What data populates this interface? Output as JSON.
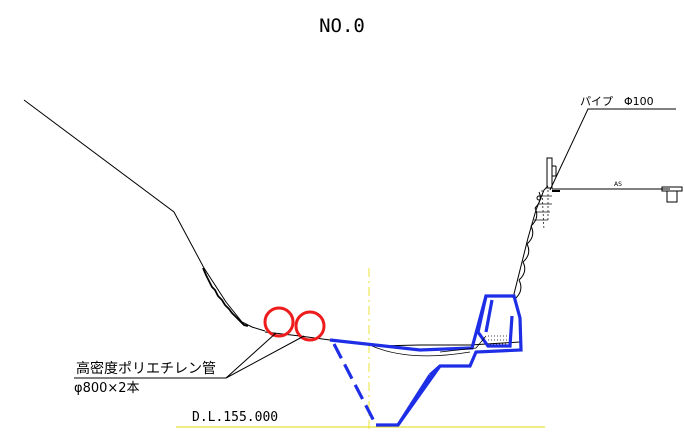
{
  "title": "NO.0",
  "labels": {
    "pipe_material": "高密度ポリエチレン管",
    "pipe_size": "φ800×2本",
    "datum": "D.L.155.000",
    "pipe_callout": "パイプ　Φ100",
    "road_mark": "AS"
  },
  "colors": {
    "ground_line": "#000000",
    "structure": "#1e2ee6",
    "pipes": "#ee1c1c",
    "center_line": "#e8e23a"
  }
}
